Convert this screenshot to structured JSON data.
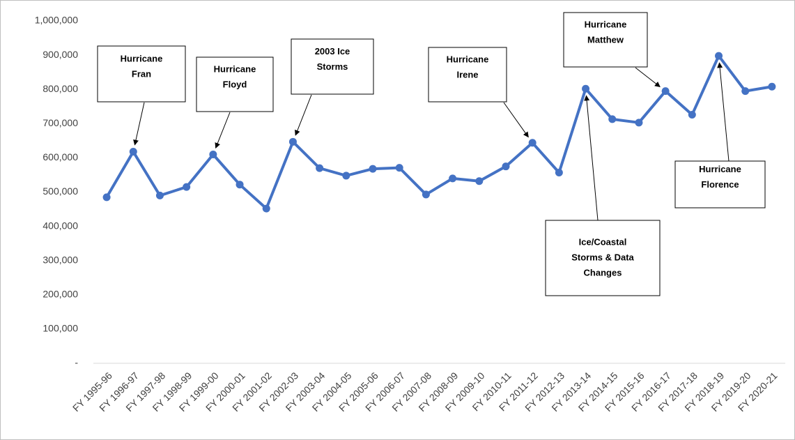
{
  "chart_data": {
    "type": "line",
    "categories": [
      "FY 1995-96",
      "FY 1996-97",
      "FY 1997-98",
      "FY 1998-99",
      "FY 1999-00",
      "FY 2000-01",
      "FY 2001-02",
      "FY 2002-03",
      "FY 2003-04",
      "FY 2004-05",
      "FY 2005-06",
      "FY 2006-07",
      "FY 2007-08",
      "FY 2008-09",
      "FY 2009-10",
      "FY 2010-11",
      "FY 2011-12",
      "FY 2012-13",
      "FY 2013-14",
      "FY 2014-15",
      "FY 2015-16",
      "FY 2016-17",
      "FY 2017-18",
      "FY 2018-19",
      "FY 2019-20",
      "FY 2020-21"
    ],
    "series": [
      {
        "color": "#4472c4",
        "values": [
          485000,
          618000,
          490000,
          515000,
          610000,
          522000,
          452000,
          647000,
          570000,
          548000,
          568000,
          571000,
          493000,
          540000,
          532000,
          575000,
          644000,
          557000,
          802000,
          713000,
          703000,
          795000,
          726000,
          898000,
          795000,
          808000
        ]
      }
    ],
    "ylim": [
      0,
      1000000
    ],
    "yticks": [
      {
        "value": 0,
        "label": "-"
      },
      {
        "value": 100000,
        "label": "100,000"
      },
      {
        "value": 200000,
        "label": "200,000"
      },
      {
        "value": 300000,
        "label": "300,000"
      },
      {
        "value": 400000,
        "label": "400,000"
      },
      {
        "value": 500000,
        "label": "500,000"
      },
      {
        "value": 600000,
        "label": "600,000"
      },
      {
        "value": 700000,
        "label": "700,000"
      },
      {
        "value": 800000,
        "label": "800,000"
      },
      {
        "value": 900000,
        "label": "900,000"
      },
      {
        "value": 1000000,
        "label": "1,000,000"
      }
    ],
    "grid": false,
    "annotations": [
      {
        "lines": [
          "Hurricane",
          "Fran"
        ],
        "category": "FY 1996-97"
      },
      {
        "lines": [
          "Hurricane",
          "Floyd"
        ],
        "category": "FY 1999-00"
      },
      {
        "lines": [
          "2003 Ice",
          "Storms"
        ],
        "category": "FY 2002-03"
      },
      {
        "lines": [
          "Hurricane",
          "Irene"
        ],
        "category": "FY 2011-12"
      },
      {
        "lines": [
          "Hurricane",
          "Matthew"
        ],
        "category": "FY 2016-17"
      },
      {
        "lines": [
          "Hurricane",
          "Florence"
        ],
        "category": "FY 2018-19"
      },
      {
        "lines": [
          "Ice/Coastal",
          "Storms & Data",
          "Changes"
        ],
        "category": "FY 2013-14"
      }
    ]
  }
}
